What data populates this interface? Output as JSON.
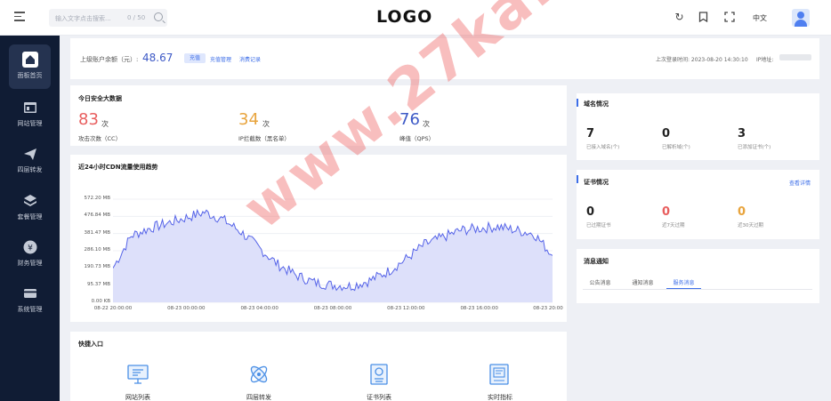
{
  "header": {
    "search_placeholder": "输入文字点击搜索...",
    "search_count": "0 / 50",
    "logo": "LOGO",
    "lang": "中文"
  },
  "sidebar": {
    "items": [
      {
        "label": "面板首页",
        "icon": "home-icon"
      },
      {
        "label": "网站管理",
        "icon": "browser-icon"
      },
      {
        "label": "四层转发",
        "icon": "send-icon"
      },
      {
        "label": "套餐管理",
        "icon": "layers-icon"
      },
      {
        "label": "财务管理",
        "icon": "yen-icon"
      },
      {
        "label": "系统管理",
        "icon": "card-icon"
      }
    ]
  },
  "account": {
    "balance_label": "上级账户余额（元）:",
    "balance_value": "48.67",
    "recharge": "充值",
    "recharge_manage": "充值管理",
    "consume_record": "消费记录",
    "last_login": "上次登录时间: 2023-08-20 14:30:10",
    "ip_label": "IP地址:"
  },
  "security": {
    "title": "今日安全大数据",
    "stats": [
      {
        "value": "83",
        "unit": "次",
        "label": "攻击次数（CC）",
        "color": "#e85e5e"
      },
      {
        "value": "34",
        "unit": "次",
        "label": "IP拦截数（黑名单）",
        "color": "#e8a43d"
      },
      {
        "value": "76",
        "unit": "次",
        "label": "峰值（QPS）",
        "color": "#3d59c6"
      }
    ]
  },
  "domain_info": {
    "title": "域名情况",
    "stats": [
      {
        "value": "7",
        "label": "已接入域名(个)",
        "color": "#222222"
      },
      {
        "value": "0",
        "label": "已解析域(个)",
        "color": "#222222"
      },
      {
        "value": "3",
        "label": "已添加证书(个)",
        "color": "#222222"
      }
    ]
  },
  "cert_info": {
    "title": "证书情况",
    "link": "查看详情",
    "stats": [
      {
        "value": "0",
        "label": "已过期证书",
        "color": "#222222"
      },
      {
        "value": "0",
        "label": "近7天过期",
        "color": "#e85e5e"
      },
      {
        "value": "0",
        "label": "近30天过期",
        "color": "#e8a43d"
      }
    ]
  },
  "messages": {
    "title": "消息通知",
    "tabs": [
      "公告消息",
      "通知消息",
      "服务消息"
    ]
  },
  "quick": {
    "title": "快捷入口",
    "items": [
      {
        "label": "网站列表",
        "icon": "monitor-icon"
      },
      {
        "label": "四层转发",
        "icon": "atom-icon"
      },
      {
        "label": "证书列表",
        "icon": "certificate-icon"
      },
      {
        "label": "实时指标",
        "icon": "document-icon"
      }
    ]
  },
  "chart_data": {
    "type": "area",
    "title": "近24小时CDN流量使用趋势",
    "y_ticks": [
      "572.20 MB",
      "476.84 MB",
      "381.47 MB",
      "286.10 MB",
      "190.73 MB",
      "95.37 MB",
      "0.00 KB"
    ],
    "x_ticks": [
      "08-22 20:00:00",
      "08-23 00:00:00",
      "08-23 04:00:00",
      "08-23 08:00:00",
      "08-23 12:00:00",
      "08-23 16:00:00",
      "08-23 20:00"
    ],
    "ylim": [
      0,
      572.2
    ],
    "unit": "MB",
    "x_hours": [
      0,
      1,
      2,
      3,
      4,
      5,
      6,
      7,
      8,
      9,
      10,
      11,
      12,
      13,
      14,
      15,
      16,
      17,
      18,
      19,
      20,
      21,
      22,
      23,
      24
    ],
    "values": [
      190,
      370,
      410,
      440,
      470,
      500,
      460,
      390,
      300,
      210,
      150,
      110,
      95,
      90,
      120,
      170,
      240,
      320,
      360,
      400,
      410,
      420,
      400,
      380,
      260
    ],
    "color": "#5563e8",
    "fill": "#dde0fa",
    "grid": true
  },
  "watermark": "www.27ka.cn"
}
